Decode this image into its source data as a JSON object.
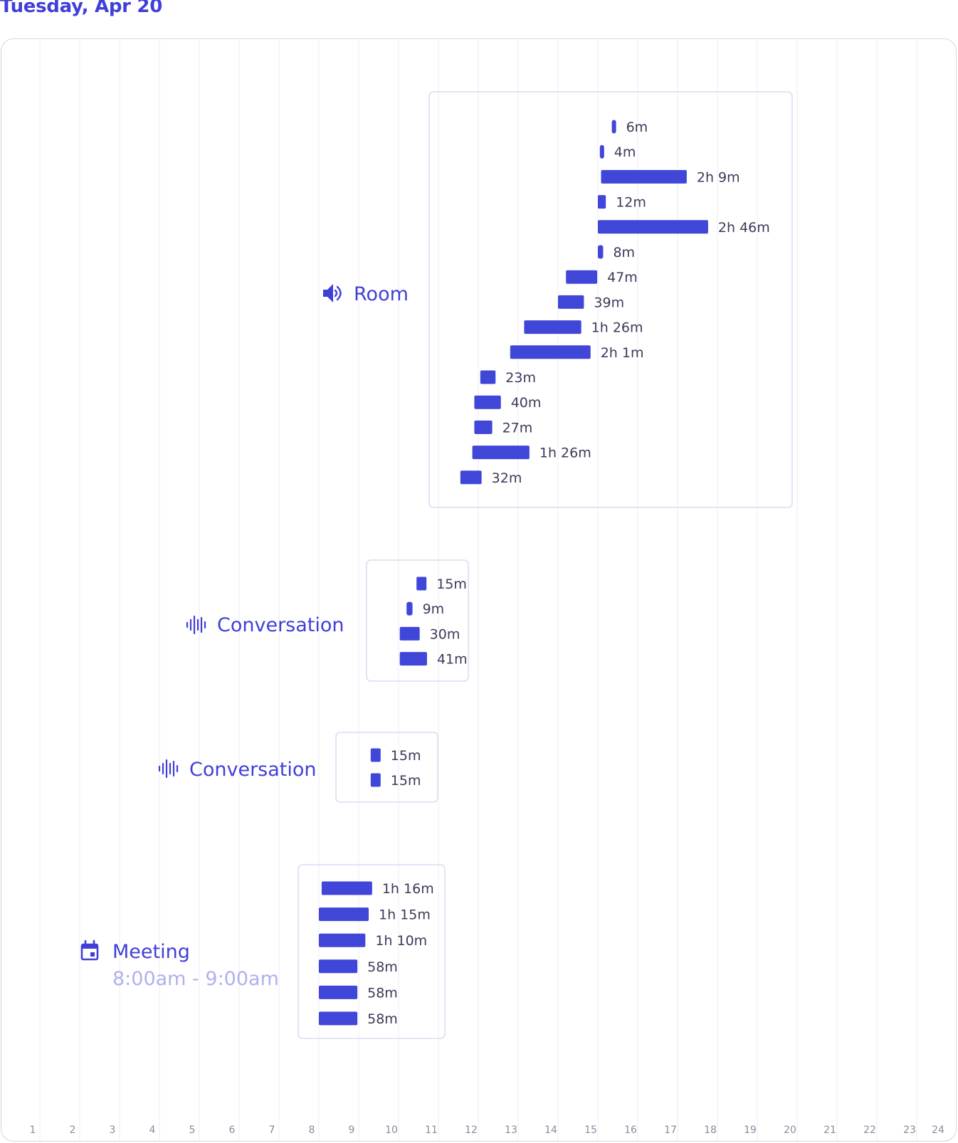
{
  "header": {
    "date": "Tuesday, Apr 20"
  },
  "colors": {
    "accent": "#4040d8",
    "bar": "#4046d8",
    "box_border": "#dcdcf3",
    "grid": "#ececf4",
    "subtext": "#b0b0ee"
  },
  "chart_data": {
    "type": "timeline",
    "x_ticks": [
      "1",
      "2",
      "3",
      "4",
      "5",
      "6",
      "7",
      "8",
      "9",
      "10",
      "11",
      "12",
      "13",
      "14",
      "15",
      "16",
      "17",
      "18",
      "19",
      "20",
      "21",
      "22",
      "23",
      "24"
    ],
    "xlim": [
      0,
      24
    ],
    "grid": true,
    "groups": [
      {
        "label": "Room",
        "icon": "speaker-icon",
        "sessions": [
          {
            "start": 15.35,
            "duration_min": 6,
            "label": "6m"
          },
          {
            "start": 15.05,
            "duration_min": 4,
            "label": "4m"
          },
          {
            "start": 15.08,
            "duration_min": 129,
            "label": "2h 9m"
          },
          {
            "start": 15.0,
            "duration_min": 12,
            "label": "12m"
          },
          {
            "start": 15.0,
            "duration_min": 166,
            "label": "2h 46m"
          },
          {
            "start": 15.0,
            "duration_min": 8,
            "label": "8m"
          },
          {
            "start": 14.2,
            "duration_min": 47,
            "label": "47m"
          },
          {
            "start": 14.0,
            "duration_min": 39,
            "label": "39m"
          },
          {
            "start": 13.15,
            "duration_min": 86,
            "label": "1h 26m"
          },
          {
            "start": 12.8,
            "duration_min": 121,
            "label": "2h 1m"
          },
          {
            "start": 12.05,
            "duration_min": 23,
            "label": "23m"
          },
          {
            "start": 11.9,
            "duration_min": 40,
            "label": "40m"
          },
          {
            "start": 11.9,
            "duration_min": 27,
            "label": "27m"
          },
          {
            "start": 11.85,
            "duration_min": 86,
            "label": "1h 26m"
          },
          {
            "start": 11.55,
            "duration_min": 32,
            "label": "32m"
          }
        ]
      },
      {
        "label": "Conversation",
        "icon": "audio-wave-icon",
        "sessions": [
          {
            "start": 10.45,
            "duration_min": 15,
            "label": "15m"
          },
          {
            "start": 10.2,
            "duration_min": 9,
            "label": "9m"
          },
          {
            "start": 10.03,
            "duration_min": 30,
            "label": "30m"
          },
          {
            "start": 10.03,
            "duration_min": 41,
            "label": "41m"
          }
        ]
      },
      {
        "label": "Conversation",
        "icon": "audio-wave-icon",
        "sessions": [
          {
            "start": 9.3,
            "duration_min": 15,
            "label": "15m"
          },
          {
            "start": 9.3,
            "duration_min": 15,
            "label": "15m"
          }
        ]
      },
      {
        "label": "Meeting",
        "sublabel": "8:00am - 9:00am",
        "icon": "calendar-icon",
        "sessions": [
          {
            "start": 8.07,
            "duration_min": 76,
            "label": "1h 16m"
          },
          {
            "start": 8.0,
            "duration_min": 75,
            "label": "1h 15m"
          },
          {
            "start": 8.0,
            "duration_min": 70,
            "label": "1h  10m"
          },
          {
            "start": 8.0,
            "duration_min": 58,
            "label": "58m"
          },
          {
            "start": 8.0,
            "duration_min": 58,
            "label": "58m"
          },
          {
            "start": 8.0,
            "duration_min": 58,
            "label": "58m"
          }
        ]
      }
    ]
  }
}
